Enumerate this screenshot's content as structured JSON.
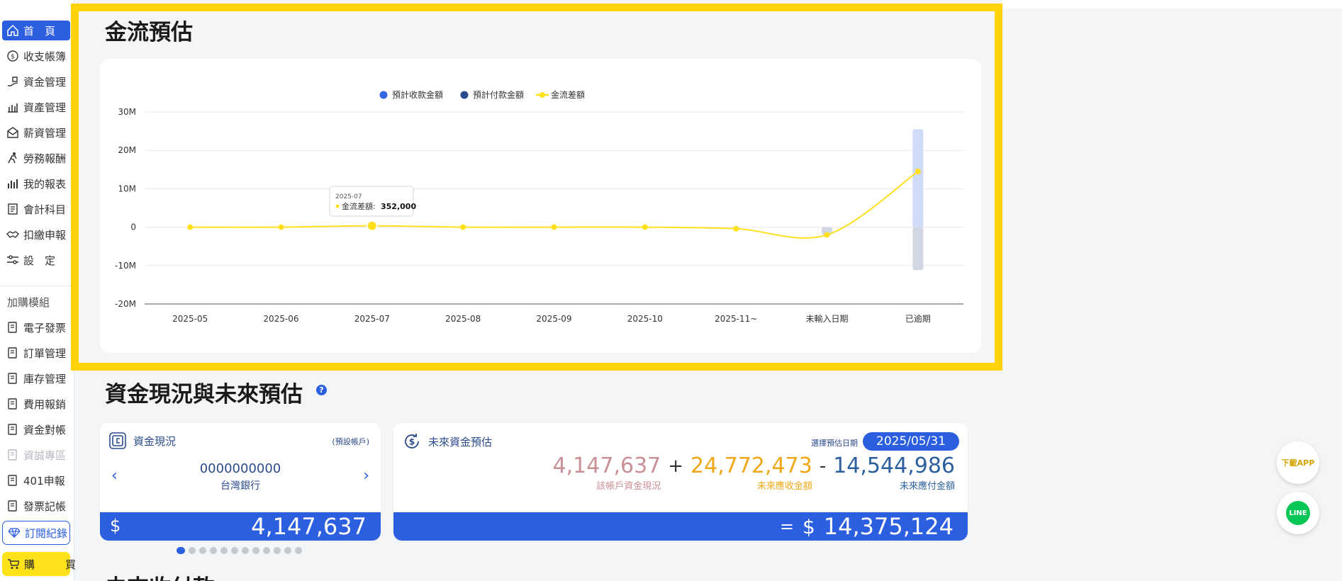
{
  "sidebar": {
    "items": [
      {
        "label": "首　頁",
        "icon": "home-icon",
        "active": true
      },
      {
        "label": "收支帳簿",
        "icon": "coin-icon"
      },
      {
        "label": "資金管理",
        "icon": "hand-money-icon"
      },
      {
        "label": "資產管理",
        "icon": "bar-building-icon"
      },
      {
        "label": "薪資管理",
        "icon": "envelope-icon"
      },
      {
        "label": "勞務報酬",
        "icon": "worker-icon"
      },
      {
        "label": "我的報表",
        "icon": "bar-chart-icon"
      },
      {
        "label": "會計科目",
        "icon": "ledger-icon"
      },
      {
        "label": "扣繳申報",
        "icon": "handshake-icon"
      },
      {
        "label": "設　定",
        "icon": "sliders-icon"
      }
    ],
    "addon_title": "加購模組",
    "addon_items": [
      {
        "label": "電子發票",
        "icon": "document-icon"
      },
      {
        "label": "訂單管理",
        "icon": "document-icon"
      },
      {
        "label": "庫存管理",
        "icon": "document-icon"
      },
      {
        "label": "費用報銷",
        "icon": "document-icon"
      },
      {
        "label": "資金對帳",
        "icon": "document-icon"
      },
      {
        "label": "資誠專區",
        "icon": "document-icon",
        "disabled": true
      },
      {
        "label": "401申報",
        "icon": "document-icon"
      },
      {
        "label": "發票記帳",
        "icon": "document-icon"
      }
    ],
    "subscription_label": "訂閱紀錄",
    "buy_label": "購　買"
  },
  "cashflow": {
    "title": "金流預估",
    "tooltip": {
      "date": "2025-07",
      "label": "金流差額:",
      "value": "352,000"
    }
  },
  "chart_data": {
    "type": "bar",
    "categories": [
      "2025-05",
      "2025-06",
      "2025-07",
      "2025-08",
      "2025-09",
      "2025-10",
      "2025-11~",
      "未輸入日期",
      "已逾期"
    ],
    "series": [
      {
        "name": "預計收款金額",
        "type": "bar",
        "color": "#3366e0",
        "values": [
          0,
          0,
          0,
          0,
          0,
          0,
          0,
          0,
          25500000
        ]
      },
      {
        "name": "預計付款金額",
        "type": "bar",
        "color": "#2a4b8c",
        "values": [
          0,
          0,
          0,
          0,
          0,
          0,
          0,
          -2000000,
          -11200000
        ]
      },
      {
        "name": "金流差額",
        "type": "line",
        "color": "#ffe01a",
        "values": [
          0,
          0,
          352000,
          0,
          0,
          0,
          -400000,
          -2000000,
          14500000
        ]
      }
    ],
    "yticks": [
      30000000,
      20000000,
      10000000,
      0,
      -10000000,
      -20000000
    ],
    "ytick_labels": [
      "30M",
      "20M",
      "10M",
      "0",
      "-10M",
      "-20M"
    ],
    "ylim": [
      -20000000,
      30000000
    ],
    "legend": "top-center",
    "grid": true
  },
  "funds": {
    "title": "資金現況與未來預估",
    "help": "?",
    "current": {
      "title": "資金現況",
      "tag": "(預設帳戶)",
      "account_no": "0000000000",
      "bank": "台灣銀行",
      "currency": "$",
      "amount": "4,147,637",
      "prev": "‹",
      "next": "›"
    },
    "future": {
      "title": "未來資金預估",
      "date_label": "選擇預估日期",
      "date": "2025/05/31",
      "a_value": "4,147,637",
      "a_label": "該帳戶資金現況",
      "plus": "+",
      "b_value": "24,772,473",
      "b_label": "未來應收金額",
      "minus": "-",
      "c_value": "14,544,986",
      "c_label": "未來應付金額",
      "equals": "=",
      "currency": "$",
      "result": "14,375,124"
    },
    "pager_total": 12,
    "pager_active": 1
  },
  "next_section_peek": "未來收付款",
  "float": {
    "app_label": "下載APP",
    "line_label": "LINE"
  },
  "colors": {
    "primary": "#2c5fe0",
    "highlight": "#ffd20a",
    "receivable": "#f0a818",
    "payable": "#2b5f9e",
    "current": "#c99095"
  }
}
